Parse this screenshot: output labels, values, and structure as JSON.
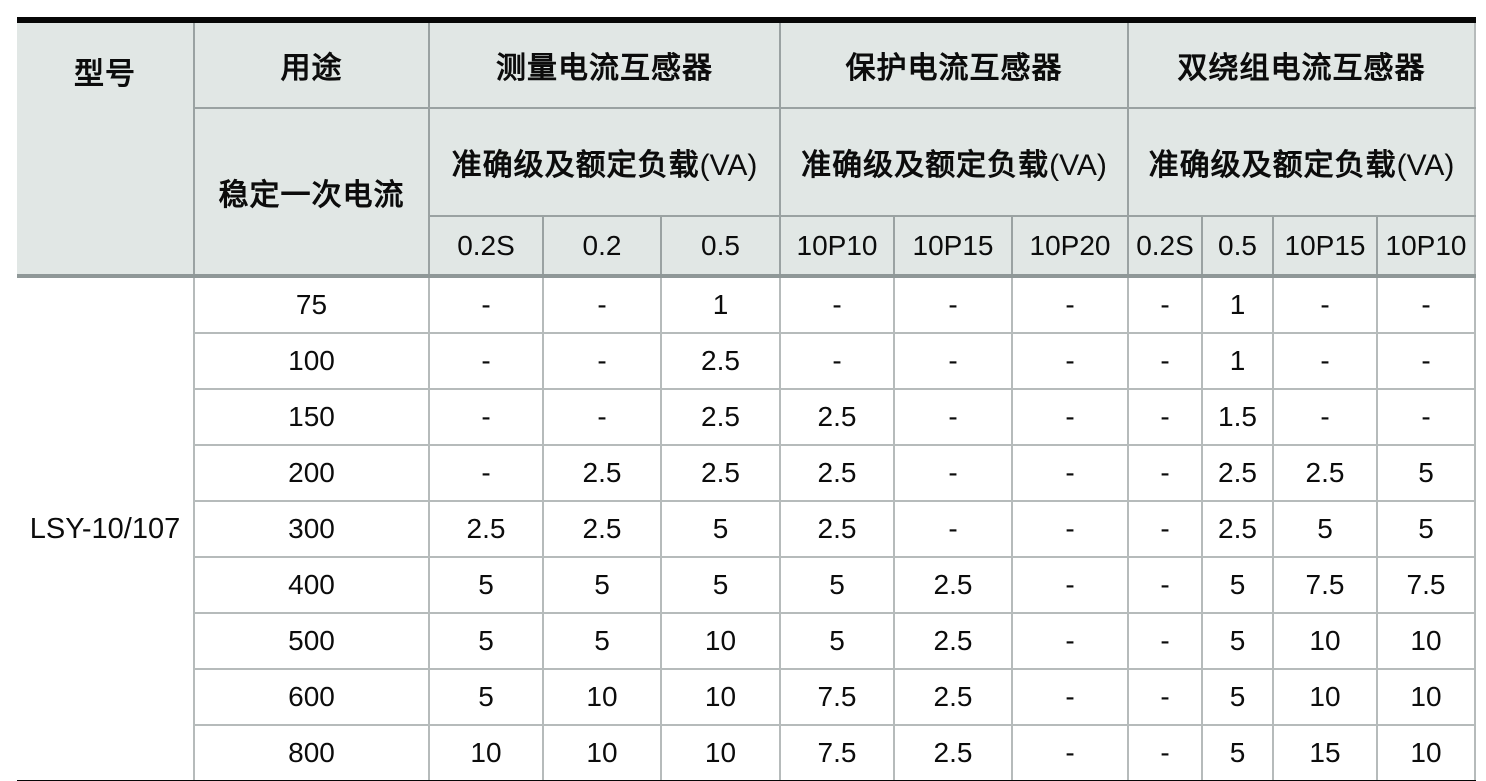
{
  "colors": {
    "header_bg": "#e1e7e5",
    "header_border": "#9aa2a2",
    "body_border": "#b6bbbb",
    "thick_rule": "#070707",
    "text": "#0c0c0c"
  },
  "table": {
    "header": {
      "model": "型号",
      "use": "用途",
      "primary_current": "稳定一次电流",
      "groups": [
        {
          "title": "测量电流互感器",
          "load_label": "准确级及额定负载",
          "load_unit": "(VA)",
          "columns": [
            "0.2S",
            "0.2",
            "0.5"
          ]
        },
        {
          "title": "保护电流互感器",
          "load_label": "准确级及额定负载",
          "load_unit": "(VA)",
          "columns": [
            "10P10",
            "10P15",
            "10P20"
          ]
        },
        {
          "title": "双绕组电流互感器",
          "load_label": "准确级及额定负载",
          "load_unit": "(VA)",
          "columns": [
            "0.2S",
            "0.5",
            "10P15",
            "10P10"
          ]
        }
      ]
    },
    "model_value": "LSY-10/107",
    "rows": [
      {
        "current": "75",
        "values": [
          "-",
          "-",
          "1",
          "-",
          "-",
          "-",
          "-",
          "1",
          "-",
          "-"
        ]
      },
      {
        "current": "100",
        "values": [
          "-",
          "-",
          "2.5",
          "-",
          "-",
          "-",
          "-",
          "1",
          "-",
          "-"
        ]
      },
      {
        "current": "150",
        "values": [
          "-",
          "-",
          "2.5",
          "2.5",
          "-",
          "-",
          "-",
          "1.5",
          "-",
          "-"
        ]
      },
      {
        "current": "200",
        "values": [
          "-",
          "2.5",
          "2.5",
          "2.5",
          "-",
          "-",
          "-",
          "2.5",
          "2.5",
          "5"
        ]
      },
      {
        "current": "300",
        "values": [
          "2.5",
          "2.5",
          "5",
          "2.5",
          "-",
          "-",
          "-",
          "2.5",
          "5",
          "5"
        ]
      },
      {
        "current": "400",
        "values": [
          "5",
          "5",
          "5",
          "5",
          "2.5",
          "-",
          "-",
          "5",
          "7.5",
          "7.5"
        ]
      },
      {
        "current": "500",
        "values": [
          "5",
          "5",
          "10",
          "5",
          "2.5",
          "-",
          "-",
          "5",
          "10",
          "10"
        ]
      },
      {
        "current": "600",
        "values": [
          "5",
          "10",
          "10",
          "7.5",
          "2.5",
          "-",
          "-",
          "5",
          "10",
          "10"
        ]
      },
      {
        "current": "800",
        "values": [
          "10",
          "10",
          "10",
          "7.5",
          "2.5",
          "-",
          "-",
          "5",
          "15",
          "10"
        ]
      }
    ]
  }
}
